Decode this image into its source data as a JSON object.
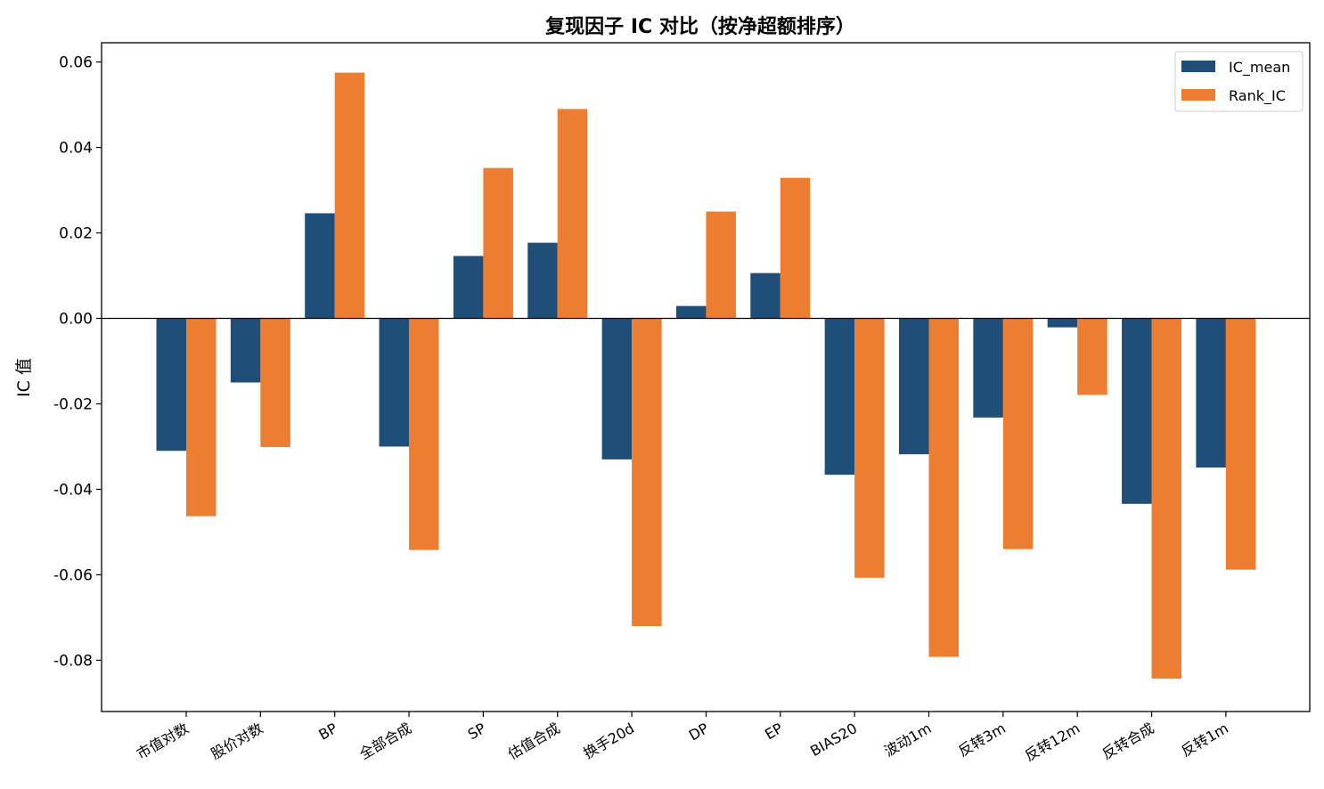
{
  "chart_data": {
    "type": "bar",
    "title": "复现因子 IC 对比（按净超额排序）",
    "xlabel": "",
    "ylabel": "IC 值",
    "ylim": [
      -0.092,
      0.0645
    ],
    "yticks": [
      0.06,
      0.04,
      0.02,
      0.0,
      -0.02,
      -0.04,
      -0.06,
      -0.08
    ],
    "ytick_labels": [
      "0.06",
      "0.04",
      "0.02",
      "0.00",
      "-0.02",
      "-0.04",
      "-0.06",
      "-0.08"
    ],
    "categories": [
      "市值对数",
      "股价对数",
      "BP",
      "全部合成",
      "SP",
      "估值合成",
      "换手20d",
      "DP",
      "EP",
      "BIAS20",
      "波动1m",
      "反转3m",
      "反转12m",
      "反转合成",
      "反转1m"
    ],
    "series": [
      {
        "name": "IC_mean",
        "color": "#1f4e79",
        "values": [
          -0.031,
          -0.015,
          0.0246,
          -0.03,
          0.0146,
          0.0177,
          -0.033,
          0.0029,
          0.0106,
          -0.0366,
          -0.0318,
          -0.0232,
          -0.0021,
          -0.0434,
          -0.0349
        ]
      },
      {
        "name": "Rank_IC",
        "color": "#ed7d31",
        "values": [
          -0.0463,
          -0.0301,
          0.0575,
          -0.0542,
          0.0352,
          0.049,
          -0.072,
          0.025,
          0.0329,
          -0.0607,
          -0.0792,
          -0.054,
          -0.0179,
          -0.0843,
          -0.0588
        ]
      }
    ],
    "grid": false,
    "legend_position": "top-right",
    "zero_line": true
  }
}
